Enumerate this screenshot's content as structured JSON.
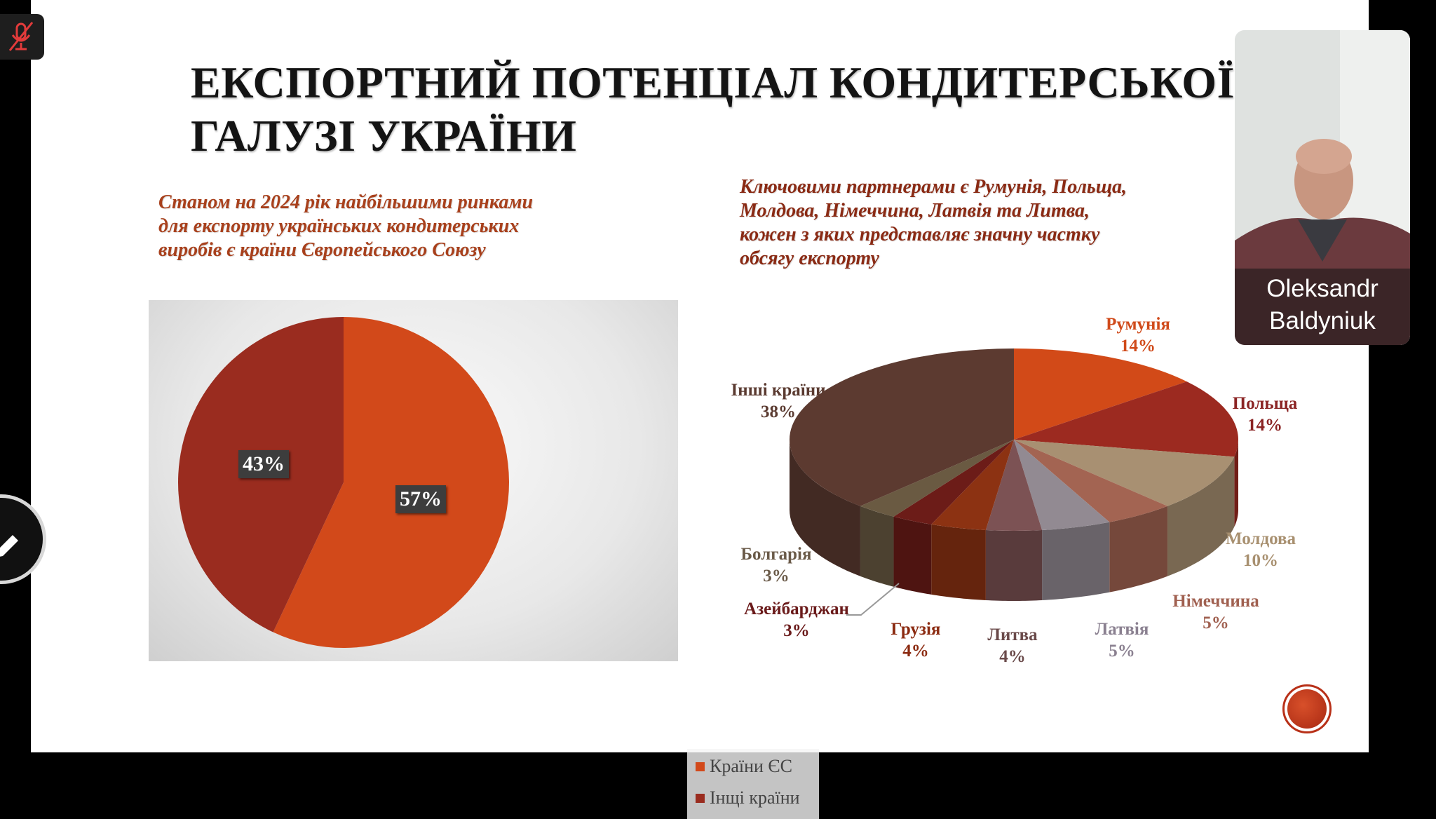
{
  "slide": {
    "title_line1": "ЕКСПОРТНИЙ ПОТЕНЦІАЛ КОНДИТЕРСЬКОЇ",
    "title_line2": "ГАЛУЗІ УКРАЇНИ",
    "left_text": [
      "Станом на 2024 рік найбільшими ринками",
      "для експорту українських кондитерських",
      "виробів є країни Європейського Союзу"
    ],
    "right_text": [
      "Ключовими партнерами є Румунія, Польща,",
      "Молдова, Німеччина, Латвія та Литва,",
      "кожен з яких представляє значну частку",
      "обсягу експорту"
    ]
  },
  "video_tile": {
    "name_line1": "Oleksandr",
    "name_line2": "Baldyniuk"
  },
  "icons": {
    "mic": "mic-muted-icon",
    "edit": "pencil-icon",
    "nav": "slide-logo-icon"
  },
  "colors": {
    "title": "#141414",
    "subtitle_left": "#a8401c",
    "subtitle_right": "#8a2a14",
    "muted_mic": "#e23b3b"
  },
  "chart_data": [
    {
      "type": "pie",
      "categories": [
        "Країни ЄС",
        "Інщі країни"
      ],
      "values": [
        57,
        43
      ],
      "data_labels": [
        "57%",
        "43%"
      ],
      "colors": [
        "#d2491a",
        "#9a2c1f"
      ],
      "legend": "right"
    },
    {
      "type": "pie",
      "style": "3d",
      "categories": [
        "Румунія",
        "Польща",
        "Молдова",
        "Німеччина",
        "Латвія",
        "Литва",
        "Грузія",
        "Азейбарджан",
        "Болгарія",
        "Інші країни"
      ],
      "values": [
        14,
        14,
        10,
        5,
        5,
        4,
        4,
        3,
        3,
        38
      ],
      "data_labels": [
        "14%",
        "14%",
        "10%",
        "5%",
        "5%",
        "4%",
        "4%",
        "3%",
        "3%",
        "38%"
      ],
      "colors": [
        "#d24a18",
        "#9c2a20",
        "#a89072",
        "#a36452",
        "#928a92",
        "#7c5254",
        "#8c3212",
        "#6c1c18",
        "#6a5a42",
        "#5c3a30"
      ],
      "label_colors": [
        "#d04a1a",
        "#8b2424",
        "#a89070",
        "#a06050",
        "#8a8090",
        "#6a4a4a",
        "#8b2a10",
        "#6a1a1a",
        "#6a5a48",
        "#5a3a30"
      ]
    }
  ]
}
